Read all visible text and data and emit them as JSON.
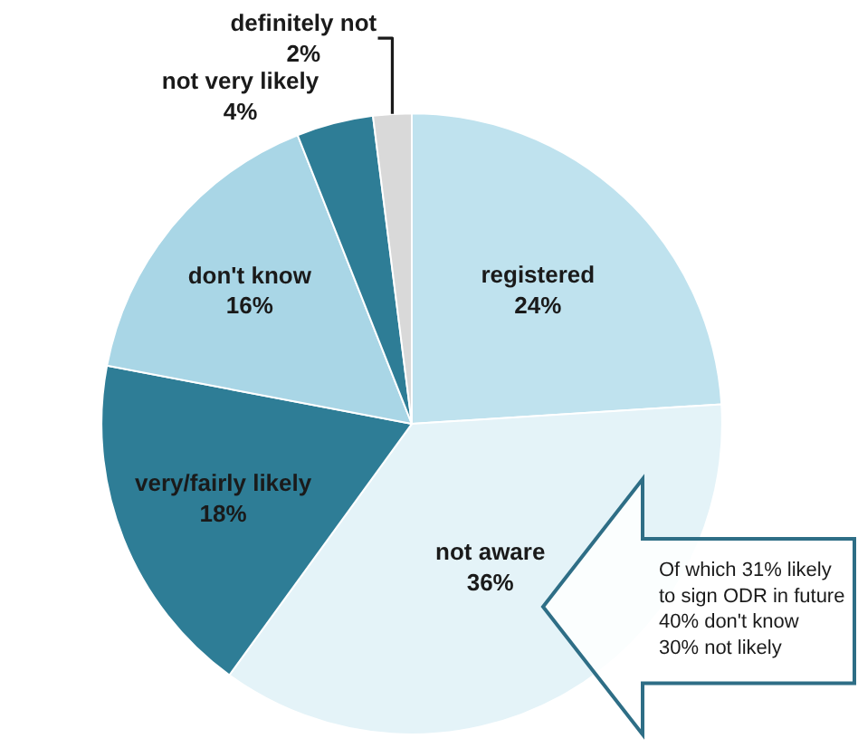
{
  "chart_data": {
    "type": "pie",
    "categories": [
      "registered",
      "not aware",
      "very/fairly likely",
      "don't know",
      "not very likely",
      "definitely not"
    ],
    "values": [
      24,
      36,
      18,
      16,
      4,
      2
    ],
    "value_labels": [
      "24%",
      "36%",
      "18%",
      "16%",
      "4%",
      "2%"
    ],
    "colors": [
      "#bfe2ee",
      "#e4f3f8",
      "#2e7d96",
      "#a9d6e6",
      "#2e7d96",
      "#d9d9d9"
    ],
    "annotations": [
      "Of which 31% likely\nto sign ODR in future\n40% don't know\n30% not likely"
    ]
  }
}
